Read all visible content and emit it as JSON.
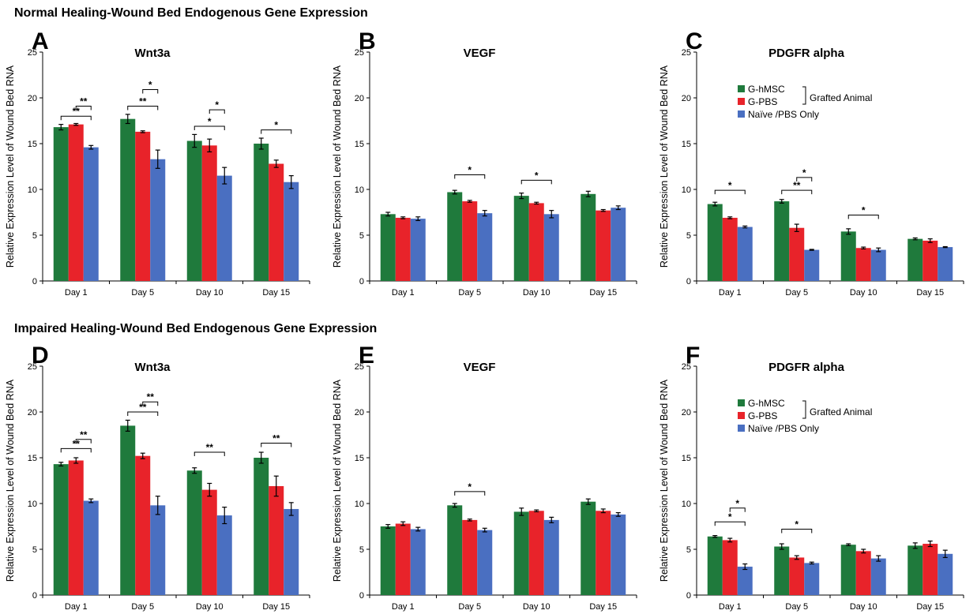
{
  "titles": {
    "normal": "Normal Healing-Wound Bed Endogenous Gene Expression",
    "impaired": "Impaired Healing-Wound Bed Endogenous Gene Expression"
  },
  "colors": {
    "G-hMSC": "#1f7a3c",
    "G-PBS": "#e8232a",
    "Naive": "#4a6fc1"
  },
  "legend": {
    "items": [
      "G-hMSC",
      "G-PBS",
      "Naïve /PBS Only"
    ],
    "bracket_label": "Grafted Animal"
  },
  "chart_data": [
    {
      "letter": "A",
      "type": "bar",
      "title": "Wnt3a",
      "ylabel": "Relative Expression Level of Wound Bed RNA",
      "ylim": [
        0,
        25
      ],
      "yticks": [
        0,
        5,
        10,
        15,
        20,
        25
      ],
      "categories": [
        "Day 1",
        "Day 5",
        "Day 10",
        "Day 15"
      ],
      "series": [
        {
          "name": "G-hMSC",
          "values": [
            16.8,
            17.7,
            15.3,
            15.0
          ],
          "errors": [
            0.3,
            0.5,
            0.7,
            0.6
          ]
        },
        {
          "name": "G-PBS",
          "values": [
            17.1,
            16.3,
            14.8,
            12.8
          ],
          "errors": [
            0.1,
            0.1,
            0.7,
            0.4
          ]
        },
        {
          "name": "Naïve /PBS Only",
          "values": [
            14.6,
            13.3,
            11.5,
            10.8
          ],
          "errors": [
            0.2,
            1.0,
            0.9,
            0.7
          ]
        }
      ],
      "significance": [
        {
          "cat": 0,
          "from": 0,
          "to": 2,
          "y": 18.0,
          "label": "**"
        },
        {
          "cat": 0,
          "from": 1,
          "to": 2,
          "y": 19.1,
          "label": "**"
        },
        {
          "cat": 1,
          "from": 0,
          "to": 2,
          "y": 19.1,
          "label": "**"
        },
        {
          "cat": 1,
          "from": 1,
          "to": 2,
          "y": 20.9,
          "label": "*"
        },
        {
          "cat": 2,
          "from": 0,
          "to": 2,
          "y": 16.9,
          "label": "*"
        },
        {
          "cat": 2,
          "from": 1,
          "to": 2,
          "y": 18.7,
          "label": "*"
        },
        {
          "cat": 3,
          "from": 0,
          "to": 2,
          "y": 16.5,
          "label": "*"
        }
      ]
    },
    {
      "letter": "B",
      "type": "bar",
      "title": "VEGF",
      "ylabel": "Relative Expression Level of Wound Bed RNA",
      "ylim": [
        0,
        25
      ],
      "yticks": [
        0,
        5,
        10,
        15,
        20,
        25
      ],
      "categories": [
        "Day 1",
        "Day 5",
        "Day 10",
        "Day 15"
      ],
      "series": [
        {
          "name": "G-hMSC",
          "values": [
            7.3,
            9.7,
            9.3,
            9.5
          ],
          "errors": [
            0.2,
            0.2,
            0.3,
            0.3
          ]
        },
        {
          "name": "G-PBS",
          "values": [
            6.9,
            8.7,
            8.5,
            7.7
          ],
          "errors": [
            0.1,
            0.1,
            0.1,
            0.1
          ]
        },
        {
          "name": "Naïve /PBS Only",
          "values": [
            6.8,
            7.4,
            7.3,
            8.0
          ],
          "errors": [
            0.2,
            0.3,
            0.4,
            0.2
          ]
        }
      ],
      "significance": [
        {
          "cat": 1,
          "from": 0,
          "to": 2,
          "y": 11.6,
          "label": "*"
        },
        {
          "cat": 2,
          "from": 0,
          "to": 2,
          "y": 11.0,
          "label": "*"
        }
      ]
    },
    {
      "letter": "C",
      "type": "bar",
      "title": "PDGFR alpha",
      "ylabel": "Relative Expression Level of Wound Bed RNA",
      "ylim": [
        0,
        25
      ],
      "yticks": [
        0,
        5,
        10,
        15,
        20,
        25
      ],
      "categories": [
        "Day 1",
        "Day 5",
        "Day 10",
        "Day 15"
      ],
      "legend": true,
      "series": [
        {
          "name": "G-hMSC",
          "values": [
            8.4,
            8.7,
            5.4,
            4.6
          ],
          "errors": [
            0.2,
            0.2,
            0.3,
            0.1
          ]
        },
        {
          "name": "G-PBS",
          "values": [
            6.9,
            5.8,
            3.6,
            4.4
          ],
          "errors": [
            0.1,
            0.4,
            0.1,
            0.2
          ]
        },
        {
          "name": "Naïve /PBS Only",
          "values": [
            5.9,
            3.4,
            3.4,
            3.7
          ],
          "errors": [
            0.1,
            0.05,
            0.2,
            0.05
          ]
        }
      ],
      "significance": [
        {
          "cat": 0,
          "from": 0,
          "to": 2,
          "y": 9.9,
          "label": "*"
        },
        {
          "cat": 1,
          "from": 0,
          "to": 2,
          "y": 9.9,
          "label": "**"
        },
        {
          "cat": 1,
          "from": 1,
          "to": 2,
          "y": 11.3,
          "label": "*"
        },
        {
          "cat": 2,
          "from": 0,
          "to": 2,
          "y": 7.2,
          "label": "*"
        }
      ]
    },
    {
      "letter": "D",
      "type": "bar",
      "title": "Wnt3a",
      "ylabel": "Relative Expression Level of Wound Bed RNA",
      "ylim": [
        0,
        25
      ],
      "yticks": [
        0,
        5,
        10,
        15,
        20,
        25
      ],
      "categories": [
        "Day 1",
        "Day 5",
        "Day 10",
        "Day 15"
      ],
      "series": [
        {
          "name": "G-hMSC",
          "values": [
            14.3,
            18.5,
            13.6,
            15.0
          ],
          "errors": [
            0.2,
            0.6,
            0.3,
            0.6
          ]
        },
        {
          "name": "G-PBS",
          "values": [
            14.7,
            15.2,
            11.5,
            11.9
          ],
          "errors": [
            0.3,
            0.3,
            0.7,
            1.1
          ]
        },
        {
          "name": "Naïve /PBS Only",
          "values": [
            10.3,
            9.8,
            8.7,
            9.4
          ],
          "errors": [
            0.2,
            1.0,
            0.9,
            0.7
          ]
        }
      ],
      "significance": [
        {
          "cat": 0,
          "from": 0,
          "to": 2,
          "y": 16.0,
          "label": "**"
        },
        {
          "cat": 0,
          "from": 1,
          "to": 2,
          "y": 17.0,
          "label": "**"
        },
        {
          "cat": 1,
          "from": 0,
          "to": 2,
          "y": 20.0,
          "label": "**"
        },
        {
          "cat": 1,
          "from": 1,
          "to": 2,
          "y": 21.1,
          "label": "**"
        },
        {
          "cat": 2,
          "from": 0,
          "to": 2,
          "y": 15.6,
          "label": "**"
        },
        {
          "cat": 3,
          "from": 0,
          "to": 2,
          "y": 16.6,
          "label": "**"
        }
      ]
    },
    {
      "letter": "E",
      "type": "bar",
      "title": "VEGF",
      "ylabel": "Relative Expression Level of Wound Bed RNA",
      "ylim": [
        0,
        25
      ],
      "yticks": [
        0,
        5,
        10,
        15,
        20,
        25
      ],
      "categories": [
        "Day 1",
        "Day 5",
        "Day 10",
        "Day 15"
      ],
      "series": [
        {
          "name": "G-hMSC",
          "values": [
            7.5,
            9.8,
            9.1,
            10.2
          ],
          "errors": [
            0.2,
            0.2,
            0.4,
            0.3
          ]
        },
        {
          "name": "G-PBS",
          "values": [
            7.8,
            8.2,
            9.2,
            9.2
          ],
          "errors": [
            0.2,
            0.1,
            0.1,
            0.2
          ]
        },
        {
          "name": "Naïve /PBS Only",
          "values": [
            7.2,
            7.1,
            8.2,
            8.8
          ],
          "errors": [
            0.2,
            0.2,
            0.3,
            0.2
          ]
        }
      ],
      "significance": [
        {
          "cat": 1,
          "from": 0,
          "to": 2,
          "y": 11.3,
          "label": "*"
        }
      ]
    },
    {
      "letter": "F",
      "type": "bar",
      "title": "PDGFR alpha",
      "ylabel": "Relative Expression Level of Wound Bed RNA",
      "ylim": [
        0,
        25
      ],
      "yticks": [
        0,
        5,
        10,
        15,
        20,
        25
      ],
      "categories": [
        "Day 1",
        "Day 5",
        "Day 10",
        "Day 15"
      ],
      "legend": true,
      "series": [
        {
          "name": "G-hMSC",
          "values": [
            6.4,
            5.3,
            5.5,
            5.4
          ],
          "errors": [
            0.1,
            0.3,
            0.1,
            0.3
          ]
        },
        {
          "name": "G-PBS",
          "values": [
            6.0,
            4.1,
            4.8,
            5.6
          ],
          "errors": [
            0.2,
            0.2,
            0.2,
            0.3
          ]
        },
        {
          "name": "Naïve /PBS Only",
          "values": [
            3.1,
            3.5,
            4.0,
            4.5
          ],
          "errors": [
            0.3,
            0.1,
            0.3,
            0.4
          ]
        }
      ],
      "significance": [
        {
          "cat": 0,
          "from": 0,
          "to": 2,
          "y": 8.0,
          "label": "*"
        },
        {
          "cat": 0,
          "from": 1,
          "to": 2,
          "y": 9.5,
          "label": "*"
        },
        {
          "cat": 1,
          "from": 0,
          "to": 2,
          "y": 7.2,
          "label": "*"
        }
      ]
    }
  ]
}
